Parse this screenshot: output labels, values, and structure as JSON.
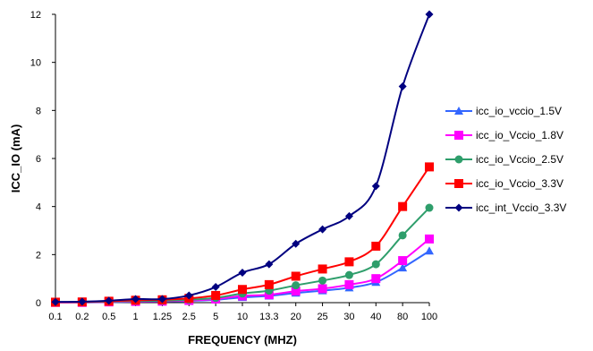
{
  "chart_data": {
    "type": "line",
    "xlabel": "FREQUENCY (MHZ)",
    "ylabel": "ICC_IO (mA)",
    "categories": [
      "0.1",
      "0.2",
      "0.5",
      "1",
      "1.25",
      "2.5",
      "5",
      "10",
      "13.3",
      "20",
      "25",
      "30",
      "40",
      "80",
      "100"
    ],
    "ylim": [
      0,
      12
    ],
    "yticks": [
      0,
      2,
      4,
      6,
      8,
      10,
      12
    ],
    "grid": "none",
    "legend_position": "right",
    "series": [
      {
        "name": "icc_io_vccio_1.5V",
        "color": "#3366ff",
        "marker": "triangle",
        "values": [
          0.01,
          0.01,
          0.02,
          0.04,
          0.05,
          0.07,
          0.12,
          0.22,
          0.28,
          0.4,
          0.5,
          0.62,
          0.85,
          1.45,
          2.15
        ]
      },
      {
        "name": "icc_io_Vccio_1.8V",
        "color": "#ff00ff",
        "marker": "square",
        "values": [
          0.01,
          0.01,
          0.03,
          0.05,
          0.06,
          0.09,
          0.15,
          0.28,
          0.33,
          0.48,
          0.58,
          0.75,
          1.0,
          1.75,
          2.65
        ]
      },
      {
        "name": "icc_io_Vccio_2.5V",
        "color": "#2e9e6b",
        "marker": "circle",
        "values": [
          0.02,
          0.02,
          0.04,
          0.07,
          0.08,
          0.12,
          0.2,
          0.38,
          0.5,
          0.72,
          0.92,
          1.15,
          1.6,
          2.8,
          3.95
        ]
      },
      {
        "name": "icc_io_Vccio_3.3V",
        "color": "#ff0000",
        "marker": "square",
        "values": [
          0.02,
          0.03,
          0.06,
          0.1,
          0.12,
          0.18,
          0.3,
          0.55,
          0.75,
          1.1,
          1.4,
          1.7,
          2.35,
          4.0,
          5.65
        ]
      },
      {
        "name": "icc_int_Vccio_3.3V",
        "color": "#000080",
        "marker": "diamond",
        "values": [
          0.03,
          0.04,
          0.08,
          0.15,
          0.15,
          0.3,
          0.65,
          1.25,
          1.6,
          2.45,
          3.05,
          3.6,
          4.85,
          9.0,
          12.0
        ]
      }
    ]
  }
}
